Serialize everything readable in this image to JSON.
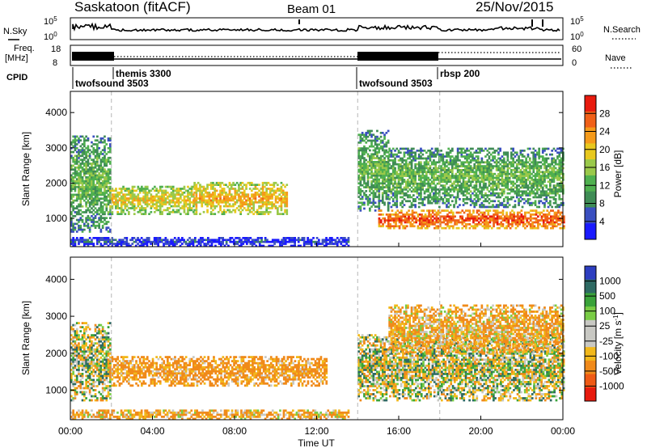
{
  "header": {
    "station": "Saskatoon (fitACF)",
    "beam": "Beam 01",
    "date": "25/Nov/2015"
  },
  "noise_panel": {
    "left_label": "N.Sky",
    "right_label": "N.Search",
    "left_ticks": [
      "10^5",
      "10^0"
    ],
    "right_ticks": [
      "10^5",
      "10^0"
    ]
  },
  "freq_panel": {
    "left_label_line1": "Freq.",
    "left_label_line2": "[MHz]",
    "right_label": "Nave",
    "left_ticks": [
      "18",
      "8"
    ],
    "right_ticks": [
      "60",
      "0"
    ]
  },
  "cpid": {
    "label": "CPID",
    "programs": [
      {
        "name": "twofsound 3503",
        "start": 0.0,
        "end": 2.0
      },
      {
        "name": "themis 3300",
        "start": 2.0,
        "end": 14.0
      },
      {
        "name": "twofsound 3503",
        "start": 14.0,
        "end": 18.0
      },
      {
        "name": "rbsp 200",
        "start": 18.0,
        "end": 24.0
      }
    ]
  },
  "x_axis": {
    "label": "Time UT",
    "ticks": [
      "00:00",
      "04:00",
      "08:00",
      "12:00",
      "16:00",
      "20:00",
      "00:00"
    ]
  },
  "colors": {
    "power_scale": [
      "#1a1aff",
      "#3a4fc0",
      "#3f8c55",
      "#4fb04f",
      "#9ac94a",
      "#e8c81e",
      "#f59a1a",
      "#f06018",
      "#e81a0e"
    ],
    "velocity_scale": [
      "#2d3ec0",
      "#2e6a63",
      "#3aa33a",
      "#79cc45",
      "#c8c8c3",
      "#c8c8c3",
      "#f2b81a",
      "#f08a1a",
      "#ef5a15",
      "#e81a0e"
    ]
  },
  "chart_data": [
    {
      "type": "heatmap",
      "name": "power",
      "ylabel": "Slant Range [km]",
      "yticks": [
        "1000",
        "2000",
        "3000",
        "4000"
      ],
      "xlim": [
        0,
        24
      ],
      "ylim": [
        200,
        4600
      ],
      "colorbar": {
        "label": "Power [dB]",
        "ticks": [
          "4",
          "8",
          "12",
          "16",
          "20",
          "24",
          "28"
        ],
        "range": [
          0,
          32
        ]
      },
      "features": [
        {
          "t": [
            0.0,
            1.9
          ],
          "range_km": [
            600,
            3300
          ],
          "value": 14
        },
        {
          "t": [
            1.9,
            6.0
          ],
          "range_km": [
            1100,
            1900
          ],
          "value": 20
        },
        {
          "t": [
            6.0,
            10.5
          ],
          "range_km": [
            1100,
            2000
          ],
          "value": 22
        },
        {
          "t": [
            14.0,
            15.5
          ],
          "range_km": [
            1200,
            3500
          ],
          "value": 14
        },
        {
          "t": [
            15.0,
            24.0
          ],
          "range_km": [
            700,
            1200
          ],
          "value": 28
        },
        {
          "t": [
            15.5,
            24.0
          ],
          "range_km": [
            1300,
            3000
          ],
          "value": 14
        },
        {
          "t": [
            0.0,
            13.5
          ],
          "range_km": [
            200,
            450
          ],
          "value": 6
        }
      ]
    },
    {
      "type": "heatmap",
      "name": "velocity",
      "ylabel": "Slant Range [km]",
      "yticks": [
        "1000",
        "2000",
        "3000",
        "4000"
      ],
      "xlim": [
        0,
        24
      ],
      "ylim": [
        200,
        4600
      ],
      "colorbar": {
        "label": "Velocity [m s^-1]",
        "ticks": [
          "1000",
          "500",
          "100",
          "25",
          "-25",
          "-100",
          "-500",
          "-1000"
        ]
      },
      "features": [
        {
          "t": [
            0.0,
            1.9
          ],
          "range_km": [
            700,
            2800
          ],
          "value": 0
        },
        {
          "t": [
            1.9,
            12.5
          ],
          "range_km": [
            1100,
            1900
          ],
          "value": -150
        },
        {
          "t": [
            14.0,
            24.0
          ],
          "range_km": [
            700,
            2500
          ],
          "value": 0
        },
        {
          "t": [
            15.5,
            24.0
          ],
          "range_km": [
            2000,
            3300
          ],
          "value": -100
        },
        {
          "t": [
            0.0,
            13.5
          ],
          "range_km": [
            200,
            450
          ],
          "value": -100
        }
      ]
    }
  ]
}
